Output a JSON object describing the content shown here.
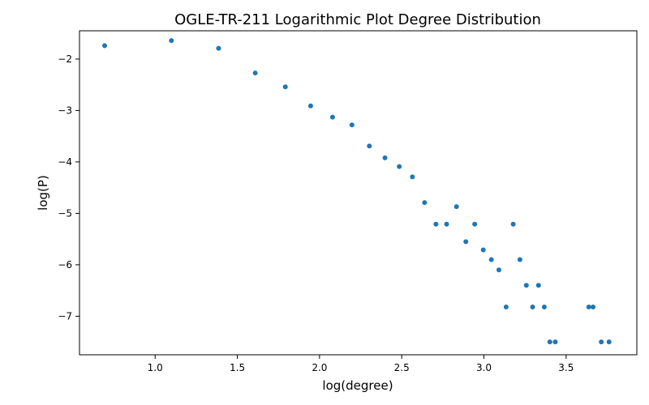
{
  "chart_data": {
    "type": "scatter",
    "title": "OGLE-TR-211 Logarithmic Plot Degree Distribution",
    "xlabel": "log(degree)",
    "ylabel": "log(P)",
    "xlim": [
      0.54,
      3.93
    ],
    "ylim": [
      -7.75,
      -1.45
    ],
    "xticks": [
      1.0,
      1.5,
      2.0,
      2.5,
      3.0,
      3.5
    ],
    "xtick_labels": [
      "1.0",
      "1.5",
      "2.0",
      "2.5",
      "3.0",
      "3.5"
    ],
    "yticks": [
      -2,
      -3,
      -4,
      -5,
      -6,
      -7
    ],
    "ytick_labels": [
      "−2",
      "−3",
      "−4",
      "−5",
      "−6",
      "−7"
    ],
    "grid": false,
    "marker_color": "#1f77b4",
    "points": [
      {
        "x": 0.693,
        "y": -1.74
      },
      {
        "x": 1.099,
        "y": -1.64
      },
      {
        "x": 1.386,
        "y": -1.79
      },
      {
        "x": 1.609,
        "y": -2.27
      },
      {
        "x": 1.792,
        "y": -2.54
      },
      {
        "x": 1.946,
        "y": -2.91
      },
      {
        "x": 2.079,
        "y": -3.13
      },
      {
        "x": 2.197,
        "y": -3.28
      },
      {
        "x": 2.303,
        "y": -3.69
      },
      {
        "x": 2.398,
        "y": -3.92
      },
      {
        "x": 2.485,
        "y": -4.09
      },
      {
        "x": 2.565,
        "y": -4.29
      },
      {
        "x": 2.639,
        "y": -4.79
      },
      {
        "x": 2.708,
        "y": -5.21
      },
      {
        "x": 2.773,
        "y": -5.21
      },
      {
        "x": 2.833,
        "y": -4.87
      },
      {
        "x": 2.89,
        "y": -5.55
      },
      {
        "x": 2.944,
        "y": -5.21
      },
      {
        "x": 2.996,
        "y": -5.71
      },
      {
        "x": 3.045,
        "y": -5.9
      },
      {
        "x": 3.091,
        "y": -6.1
      },
      {
        "x": 3.135,
        "y": -6.82
      },
      {
        "x": 3.178,
        "y": -5.21
      },
      {
        "x": 3.219,
        "y": -5.9
      },
      {
        "x": 3.258,
        "y": -6.4
      },
      {
        "x": 3.296,
        "y": -6.82
      },
      {
        "x": 3.332,
        "y": -6.4
      },
      {
        "x": 3.367,
        "y": -6.82
      },
      {
        "x": 3.401,
        "y": -7.5
      },
      {
        "x": 3.434,
        "y": -7.5
      },
      {
        "x": 3.638,
        "y": -6.82
      },
      {
        "x": 3.664,
        "y": -6.82
      },
      {
        "x": 3.714,
        "y": -7.5
      },
      {
        "x": 3.761,
        "y": -7.5
      }
    ]
  }
}
